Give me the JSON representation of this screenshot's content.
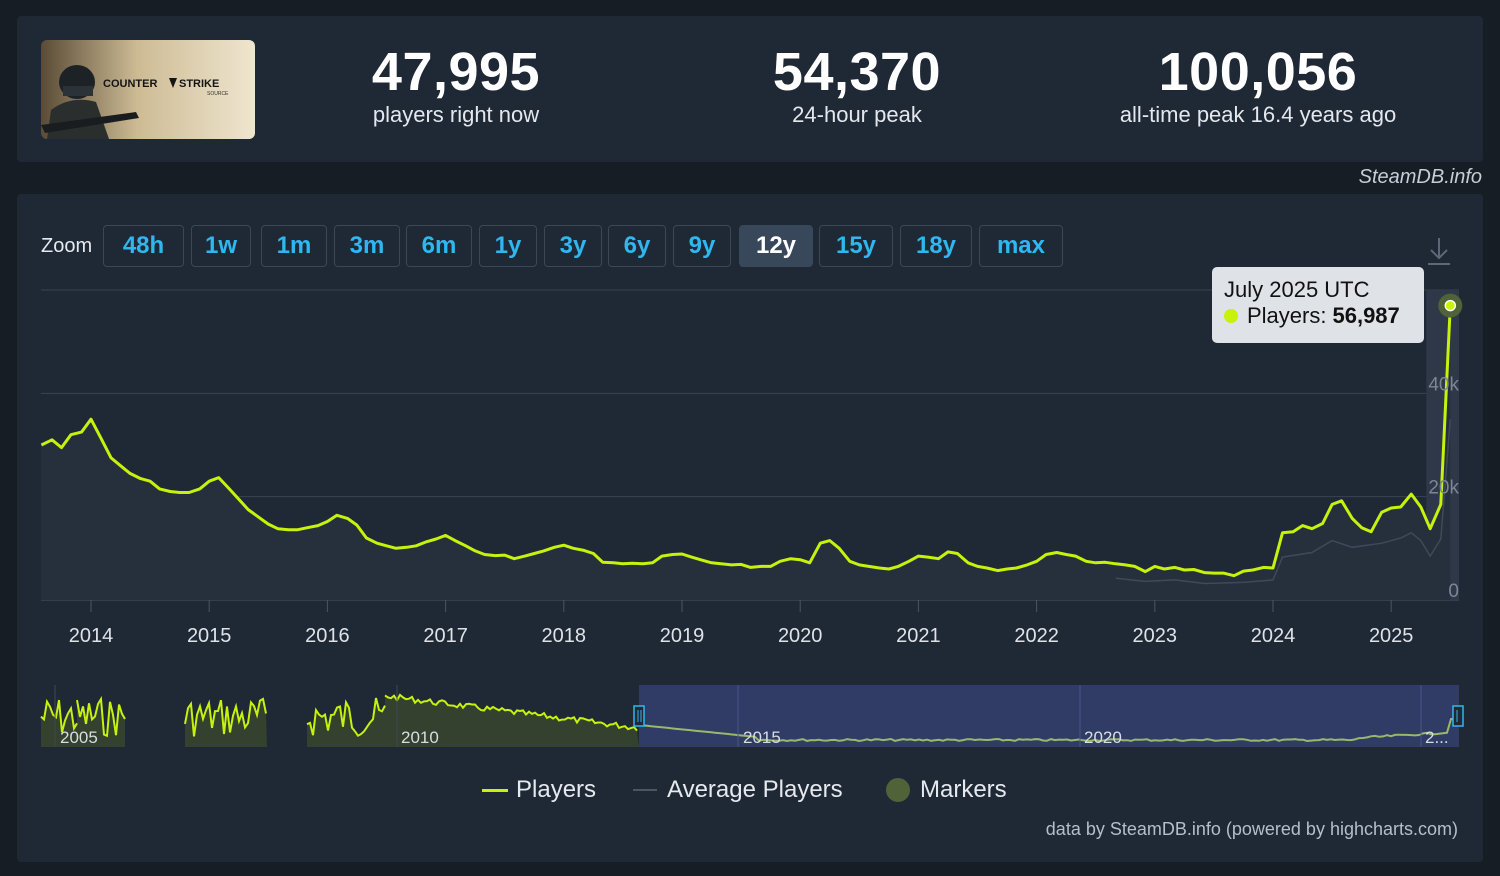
{
  "header": {
    "game_logo_text": "COUNTER-STRIKE SOURCE",
    "stats": [
      {
        "value": "47,995",
        "label": "players right now"
      },
      {
        "value": "54,370",
        "label": "24-hour peak"
      },
      {
        "value": "100,056",
        "label": "all-time peak 16.4 years ago"
      }
    ]
  },
  "credit": "SteamDB.info",
  "zoom": {
    "label": "Zoom",
    "options": [
      "48h",
      "1w",
      "1m",
      "3m",
      "6m",
      "1y",
      "3y",
      "6y",
      "9y",
      "12y",
      "15y",
      "18y",
      "max"
    ],
    "active": "12y"
  },
  "tooltip": {
    "title": "July 2025 UTC",
    "series_label": "Players:",
    "value": "56,987"
  },
  "navigator": {
    "labels": [
      "2005",
      "2010",
      "2015",
      "2020",
      "2..."
    ]
  },
  "legend": {
    "players": "Players",
    "average": "Average Players",
    "markers": "Markers"
  },
  "attribution": "data by SteamDB.info (powered by highcharts.com)",
  "colors": {
    "players_line": "#c6f20e",
    "average_line": "#3e4a5a",
    "marker": "#4f6238",
    "accent": "#2fb7f0",
    "navigator_selection": "#323d6c"
  },
  "chart_data": {
    "type": "line",
    "x_axis_labels": [
      "2014",
      "2015",
      "2016",
      "2017",
      "2018",
      "2019",
      "2020",
      "2021",
      "2022",
      "2023",
      "2024",
      "2025"
    ],
    "y_axis_labels": [
      "0",
      "20k",
      "40k"
    ],
    "ylim": [
      0,
      60000
    ],
    "series": [
      {
        "name": "Players",
        "points": [
          [
            2013.58,
            30000
          ],
          [
            2013.67,
            31000
          ],
          [
            2013.75,
            29500
          ],
          [
            2013.83,
            32000
          ],
          [
            2013.92,
            32500
          ],
          [
            2014.0,
            35000
          ],
          [
            2014.08,
            31500
          ],
          [
            2014.17,
            27500
          ],
          [
            2014.25,
            26000
          ],
          [
            2014.33,
            24500
          ],
          [
            2014.42,
            23500
          ],
          [
            2014.5,
            23000
          ],
          [
            2014.58,
            21500
          ],
          [
            2014.67,
            21000
          ],
          [
            2014.75,
            20800
          ],
          [
            2014.83,
            20800
          ],
          [
            2014.92,
            21500
          ],
          [
            2015.0,
            23000
          ],
          [
            2015.08,
            23700
          ],
          [
            2015.17,
            21500
          ],
          [
            2015.25,
            19500
          ],
          [
            2015.33,
            17500
          ],
          [
            2015.42,
            16000
          ],
          [
            2015.5,
            14700
          ],
          [
            2015.58,
            13800
          ],
          [
            2015.67,
            13600
          ],
          [
            2015.75,
            13600
          ],
          [
            2015.83,
            14000
          ],
          [
            2015.92,
            14400
          ],
          [
            2016.0,
            15200
          ],
          [
            2016.08,
            16400
          ],
          [
            2016.17,
            15800
          ],
          [
            2016.25,
            14500
          ],
          [
            2016.33,
            12000
          ],
          [
            2016.42,
            11000
          ],
          [
            2016.5,
            10500
          ],
          [
            2016.58,
            10000
          ],
          [
            2016.67,
            10200
          ],
          [
            2016.75,
            10500
          ],
          [
            2016.83,
            11200
          ],
          [
            2016.92,
            11800
          ],
          [
            2017.0,
            12500
          ],
          [
            2017.08,
            11500
          ],
          [
            2017.17,
            10500
          ],
          [
            2017.25,
            9500
          ],
          [
            2017.33,
            8800
          ],
          [
            2017.42,
            8600
          ],
          [
            2017.5,
            8700
          ],
          [
            2017.58,
            8000
          ],
          [
            2017.67,
            8500
          ],
          [
            2017.75,
            9000
          ],
          [
            2017.83,
            9500
          ],
          [
            2017.92,
            10200
          ],
          [
            2018.0,
            10600
          ],
          [
            2018.08,
            10000
          ],
          [
            2018.17,
            9600
          ],
          [
            2018.25,
            9000
          ],
          [
            2018.33,
            7300
          ],
          [
            2018.42,
            7200
          ],
          [
            2018.5,
            7000
          ],
          [
            2018.58,
            7100
          ],
          [
            2018.67,
            7000
          ],
          [
            2018.75,
            7200
          ],
          [
            2018.83,
            8500
          ],
          [
            2018.92,
            8800
          ],
          [
            2019.0,
            8900
          ],
          [
            2019.08,
            8300
          ],
          [
            2019.17,
            7700
          ],
          [
            2019.25,
            7200
          ],
          [
            2019.33,
            7000
          ],
          [
            2019.42,
            6800
          ],
          [
            2019.5,
            6900
          ],
          [
            2019.58,
            6300
          ],
          [
            2019.67,
            6500
          ],
          [
            2019.75,
            6500
          ],
          [
            2019.83,
            7500
          ],
          [
            2019.92,
            8000
          ],
          [
            2020.0,
            7800
          ],
          [
            2020.08,
            7200
          ],
          [
            2020.17,
            11000
          ],
          [
            2020.25,
            11500
          ],
          [
            2020.33,
            10000
          ],
          [
            2020.42,
            7500
          ],
          [
            2020.5,
            6800
          ],
          [
            2020.58,
            6500
          ],
          [
            2020.67,
            6200
          ],
          [
            2020.75,
            6000
          ],
          [
            2020.83,
            6500
          ],
          [
            2020.92,
            7500
          ],
          [
            2021.0,
            8500
          ],
          [
            2021.08,
            8300
          ],
          [
            2021.17,
            8000
          ],
          [
            2021.25,
            9300
          ],
          [
            2021.33,
            9000
          ],
          [
            2021.42,
            7200
          ],
          [
            2021.5,
            6500
          ],
          [
            2021.58,
            6200
          ],
          [
            2021.67,
            5700
          ],
          [
            2021.75,
            6000
          ],
          [
            2021.83,
            6200
          ],
          [
            2021.92,
            6800
          ],
          [
            2022.0,
            7500
          ],
          [
            2022.08,
            8800
          ],
          [
            2022.17,
            9200
          ],
          [
            2022.25,
            8800
          ],
          [
            2022.33,
            8500
          ],
          [
            2022.42,
            7500
          ],
          [
            2022.5,
            7200
          ],
          [
            2022.58,
            7300
          ],
          [
            2022.67,
            7000
          ],
          [
            2022.75,
            6800
          ],
          [
            2022.83,
            6500
          ],
          [
            2022.92,
            5500
          ],
          [
            2023.0,
            6500
          ],
          [
            2023.08,
            6000
          ],
          [
            2023.17,
            6300
          ],
          [
            2023.25,
            5800
          ],
          [
            2023.33,
            5900
          ],
          [
            2023.42,
            5300
          ],
          [
            2023.5,
            5200
          ],
          [
            2023.58,
            5200
          ],
          [
            2023.67,
            4700
          ],
          [
            2023.75,
            5600
          ],
          [
            2023.83,
            5800
          ],
          [
            2023.92,
            6300
          ],
          [
            2024.0,
            6200
          ],
          [
            2024.08,
            13000
          ],
          [
            2024.17,
            13200
          ],
          [
            2024.25,
            14400
          ],
          [
            2024.33,
            13800
          ],
          [
            2024.42,
            14800
          ],
          [
            2024.5,
            18500
          ],
          [
            2024.58,
            19200
          ],
          [
            2024.67,
            15800
          ],
          [
            2024.75,
            14000
          ],
          [
            2024.83,
            13200
          ],
          [
            2024.92,
            17000
          ],
          [
            2025.0,
            17800
          ],
          [
            2025.08,
            18000
          ],
          [
            2025.17,
            20500
          ],
          [
            2025.25,
            18000
          ],
          [
            2025.33,
            13800
          ],
          [
            2025.42,
            18500
          ],
          [
            2025.5,
            56987
          ]
        ]
      },
      {
        "name": "Average Players",
        "points": [
          [
            2022.67,
            4200
          ],
          [
            2022.92,
            3600
          ],
          [
            2023.17,
            3900
          ],
          [
            2023.42,
            3200
          ],
          [
            2023.75,
            3400
          ],
          [
            2024.0,
            3900
          ],
          [
            2024.08,
            8300
          ],
          [
            2024.33,
            9200
          ],
          [
            2024.5,
            11500
          ],
          [
            2024.67,
            10200
          ],
          [
            2024.92,
            11000
          ],
          [
            2025.08,
            12000
          ],
          [
            2025.17,
            13000
          ],
          [
            2025.25,
            11500
          ],
          [
            2025.33,
            8500
          ],
          [
            2025.42,
            11800
          ],
          [
            2025.5,
            35000
          ]
        ]
      }
    ],
    "tooltip_point": {
      "x": "July 2025 UTC",
      "y": 56987
    }
  }
}
